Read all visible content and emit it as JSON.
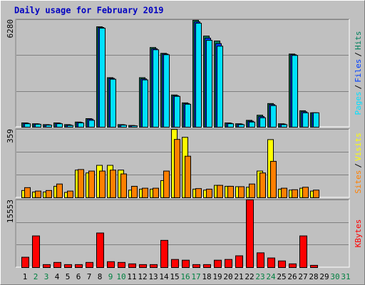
{
  "chart_data": [
    {
      "type": "bar",
      "title": "Daily usage for February 2019",
      "ylim": [
        0,
        6280
      ],
      "yticks": [
        6280
      ],
      "grid": true,
      "legend_separator": "/",
      "series": [
        {
          "name": "Pages",
          "color": "#00e0ff",
          "values": [
            200,
            170,
            120,
            200,
            100,
            250,
            400,
            5780,
            2800,
            120,
            80,
            2760,
            4520,
            4230,
            1800,
            1340,
            6070,
            5070,
            4730,
            200,
            150,
            300,
            550,
            1260,
            150,
            4190,
            840,
            840,
            null,
            null,
            null
          ]
        },
        {
          "name": "Files",
          "color": "#0040ff",
          "values": [
            230,
            190,
            140,
            230,
            130,
            280,
            470,
            5820,
            2850,
            140,
            90,
            2820,
            4580,
            4270,
            1840,
            1380,
            6150,
            5200,
            4880,
            230,
            180,
            350,
            620,
            1320,
            180,
            4230,
            900,
            840,
            null,
            null,
            null
          ]
        },
        {
          "name": "Hits",
          "color": "#00805c",
          "values": [
            250,
            200,
            150,
            250,
            150,
            300,
            500,
            5860,
            2890,
            150,
            100,
            2890,
            4650,
            4310,
            1880,
            1420,
            6240,
            5320,
            5030,
            250,
            200,
            400,
            700,
            1380,
            200,
            4270,
            960,
            840,
            null,
            null,
            null
          ]
        }
      ]
    },
    {
      "type": "bar",
      "ylim": [
        0,
        359
      ],
      "yticks": [
        359
      ],
      "grid": true,
      "legend_separator": "/",
      "series": [
        {
          "name": "Sites",
          "color": "#ff8000",
          "values": [
            53,
            35,
            38,
            72,
            35,
            148,
            140,
            140,
            145,
            125,
            60,
            50,
            50,
            140,
            306,
            218,
            48,
            45,
            65,
            60,
            58,
            72,
            130,
            191,
            50,
            42,
            55,
            40,
            null,
            null,
            null
          ]
        },
        {
          "name": "Visits",
          "color": "#ffff00",
          "values": [
            38,
            30,
            30,
            60,
            28,
            145,
            130,
            170,
            170,
            145,
            40,
            45,
            45,
            90,
            359,
            317,
            45,
            40,
            65,
            60,
            58,
            55,
            140,
            305,
            45,
            40,
            50,
            35,
            null,
            null,
            null
          ]
        }
      ]
    },
    {
      "type": "bar",
      "ylim": [
        0,
        15553
      ],
      "yticks": [
        15553
      ],
      "grid": true,
      "categories": [
        "1",
        "2",
        "3",
        "4",
        "5",
        "6",
        "7",
        "8",
        "9",
        "10",
        "11",
        "12",
        "13",
        "14",
        "15",
        "16",
        "17",
        "18",
        "19",
        "20",
        "21",
        "22",
        "23",
        "24",
        "25",
        "26",
        "27",
        "28",
        "29",
        "30",
        "31"
      ],
      "category_colors": [
        "#000000",
        "#008040",
        "#008040",
        "#000000",
        "#000000",
        "#000000",
        "#000000",
        "#000000",
        "#008040",
        "#008040",
        "#000000",
        "#000000",
        "#000000",
        "#000000",
        "#000000",
        "#008040",
        "#008040",
        "#000000",
        "#000000",
        "#000000",
        "#000000",
        "#000000",
        "#008040",
        "#008040",
        "#000000",
        "#000000",
        "#000000",
        "#000000",
        "#000000",
        "#008040",
        "#008040"
      ],
      "series": [
        {
          "name": "KBytes",
          "color": "#ff0000",
          "values": [
            2370,
            7270,
            680,
            1180,
            680,
            680,
            1180,
            7940,
            1350,
            1180,
            850,
            680,
            680,
            6250,
            1860,
            1690,
            680,
            680,
            1690,
            1860,
            2700,
            15553,
            3380,
            2200,
            1520,
            850,
            7270,
            510,
            null,
            null,
            null
          ]
        }
      ]
    }
  ]
}
